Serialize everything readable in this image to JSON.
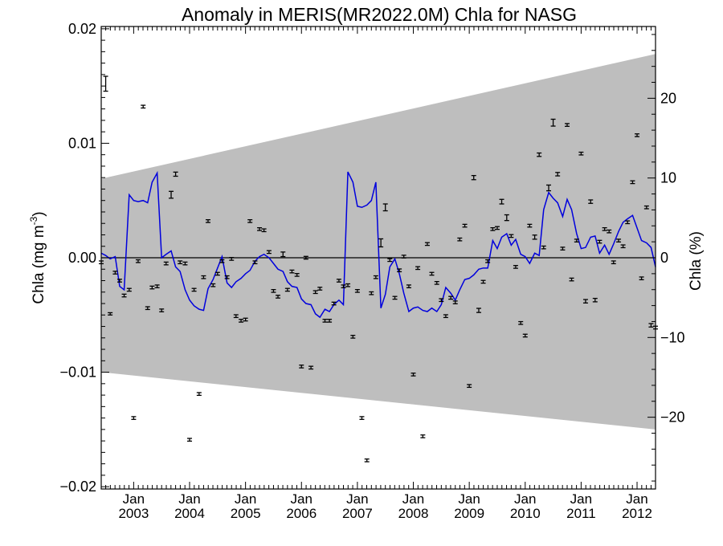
{
  "chart_data": {
    "type": "scatter",
    "title": "Anomaly in MERIS(MR2022.0M) Chla for NASG",
    "ylabel_left": "Chla (mg m",
    "ylabel_left_sup": "-3",
    "ylabel_left_close": ")",
    "ylabel_right": "Chla (%)",
    "x_range": [
      2002.42,
      2012.33
    ],
    "y_range": [
      -0.0202,
      0.0202
    ],
    "y_percent_range": [
      -29.0,
      29.0
    ],
    "x_ticks": [
      {
        "x": 2003.0,
        "month": "Jan",
        "year": "2003"
      },
      {
        "x": 2004.0,
        "month": "Jan",
        "year": "2004"
      },
      {
        "x": 2005.0,
        "month": "Jan",
        "year": "2005"
      },
      {
        "x": 2006.0,
        "month": "Jan",
        "year": "2006"
      },
      {
        "x": 2007.0,
        "month": "Jan",
        "year": "2007"
      },
      {
        "x": 2008.0,
        "month": "Jan",
        "year": "2008"
      },
      {
        "x": 2009.0,
        "month": "Jan",
        "year": "2009"
      },
      {
        "x": 2010.0,
        "month": "Jan",
        "year": "2010"
      },
      {
        "x": 2011.0,
        "month": "Jan",
        "year": "2011"
      },
      {
        "x": 2012.0,
        "month": "Jan",
        "year": "2012"
      }
    ],
    "y_ticks_left": [
      {
        "v": -0.02,
        "label": "−0.02"
      },
      {
        "v": -0.01,
        "label": "−0.01"
      },
      {
        "v": 0.0,
        "label": "0.00"
      },
      {
        "v": 0.01,
        "label": "0.01"
      },
      {
        "v": 0.02,
        "label": "0.02"
      }
    ],
    "y_ticks_right": [
      {
        "v": -20,
        "label": "−20"
      },
      {
        "v": -10,
        "label": "−10"
      },
      {
        "v": 0,
        "label": "0"
      },
      {
        "v": 10,
        "label": "10"
      },
      {
        "v": 20,
        "label": "20"
      }
    ],
    "band": {
      "color": "#bebebe",
      "x": [
        2002.42,
        2012.33
      ],
      "upper": [
        0.0069,
        0.0178
      ],
      "lower": [
        -0.01,
        -0.015
      ]
    },
    "zero_line": 0.0,
    "line_series": {
      "color": "#0000dd",
      "x": [
        2002.42,
        2002.5,
        2002.58,
        2002.67,
        2002.75,
        2002.83,
        2002.92,
        2003.0,
        2003.08,
        2003.17,
        2003.25,
        2003.33,
        2003.42,
        2003.5,
        2003.58,
        2003.67,
        2003.75,
        2003.83,
        2003.92,
        2004.0,
        2004.08,
        2004.17,
        2004.25,
        2004.33,
        2004.42,
        2004.5,
        2004.58,
        2004.67,
        2004.75,
        2004.83,
        2004.92,
        2005.0,
        2005.08,
        2005.17,
        2005.25,
        2005.33,
        2005.42,
        2005.5,
        2005.58,
        2005.67,
        2005.75,
        2005.83,
        2005.92,
        2006.0,
        2006.08,
        2006.17,
        2006.25,
        2006.33,
        2006.42,
        2006.5,
        2006.58,
        2006.67,
        2006.75,
        2006.83,
        2006.92,
        2007.0,
        2007.08,
        2007.17,
        2007.25,
        2007.33,
        2007.42,
        2007.5,
        2007.58,
        2007.67,
        2007.75,
        2007.83,
        2007.92,
        2008.0,
        2008.08,
        2008.17,
        2008.25,
        2008.33,
        2008.42,
        2008.5,
        2008.58,
        2008.67,
        2008.75,
        2008.83,
        2008.92,
        2009.0,
        2009.08,
        2009.17,
        2009.25,
        2009.33,
        2009.42,
        2009.5,
        2009.58,
        2009.67,
        2009.75,
        2009.83,
        2009.92,
        2010.0,
        2010.08,
        2010.17,
        2010.25,
        2010.33,
        2010.42,
        2010.5,
        2010.58,
        2010.67,
        2010.75,
        2010.83,
        2010.92,
        2011.0,
        2011.08,
        2011.17,
        2011.25,
        2011.33,
        2011.42,
        2011.5,
        2011.58,
        2011.67,
        2011.75,
        2011.83,
        2011.92,
        2012.0,
        2012.08,
        2012.17,
        2012.25,
        2012.33
      ],
      "y": [
        0.0004,
        0.0002,
        -0.0001,
        0.0001,
        -0.0025,
        -0.0028,
        0.0055,
        0.005,
        0.0049,
        0.005,
        0.0048,
        0.0066,
        0.0074,
        0.0,
        0.0003,
        0.0006,
        -0.0008,
        -0.0012,
        -0.0028,
        -0.0037,
        -0.0042,
        -0.0045,
        -0.0046,
        -0.0027,
        -0.0019,
        -0.0009,
        0.0001,
        -0.0022,
        -0.0026,
        -0.0021,
        -0.0018,
        -0.0014,
        -0.0011,
        -0.0003,
        0.0001,
        0.0003,
        0.0,
        -0.0005,
        -0.001,
        -0.0012,
        -0.0021,
        -0.0025,
        -0.0026,
        -0.0036,
        -0.004,
        -0.0041,
        -0.0049,
        -0.0052,
        -0.0045,
        -0.0047,
        -0.0041,
        -0.0037,
        -0.0041,
        0.0075,
        0.0066,
        0.0045,
        0.0044,
        0.0046,
        0.005,
        0.0066,
        -0.0044,
        -0.0032,
        -0.0008,
        -0.0001,
        -0.0014,
        -0.0031,
        -0.0047,
        -0.0044,
        -0.0043,
        -0.0046,
        -0.0047,
        -0.0044,
        -0.0047,
        -0.0041,
        -0.0026,
        -0.0031,
        -0.0037,
        -0.0028,
        -0.0019,
        -0.0018,
        -0.0015,
        -0.001,
        -0.0009,
        -0.0009,
        0.0015,
        0.0008,
        0.0018,
        0.0021,
        0.0011,
        0.0016,
        0.0003,
        0.0001,
        -0.0005,
        0.0004,
        0.0002,
        0.0042,
        0.0057,
        0.0052,
        0.0048,
        0.0036,
        0.0051,
        0.0042,
        0.0021,
        0.0008,
        0.0009,
        0.0018,
        0.0019,
        0.0004,
        0.0011,
        0.0003,
        0.0012,
        0.0023,
        0.0031,
        0.0034,
        0.0037,
        0.0026,
        0.0015,
        0.0013,
        0.0009,
        -0.0008
      ]
    },
    "points": {
      "color": "#000000",
      "x": [
        2002.42,
        2002.5,
        2002.58,
        2002.67,
        2002.75,
        2002.83,
        2002.92,
        2003.0,
        2003.08,
        2003.17,
        2003.25,
        2003.33,
        2003.42,
        2003.5,
        2003.58,
        2003.67,
        2003.75,
        2003.83,
        2003.92,
        2004.0,
        2004.08,
        2004.17,
        2004.25,
        2004.33,
        2004.42,
        2004.5,
        2004.58,
        2004.67,
        2004.75,
        2004.83,
        2004.92,
        2005.0,
        2005.08,
        2005.17,
        2005.25,
        2005.33,
        2005.42,
        2005.5,
        2005.58,
        2005.67,
        2005.75,
        2005.83,
        2005.92,
        2006.0,
        2006.08,
        2006.17,
        2006.25,
        2006.33,
        2006.42,
        2006.5,
        2006.58,
        2006.67,
        2006.75,
        2006.83,
        2006.92,
        2007.0,
        2007.08,
        2007.17,
        2007.25,
        2007.33,
        2007.42,
        2007.5,
        2007.58,
        2007.67,
        2007.75,
        2007.83,
        2007.92,
        2008.0,
        2008.08,
        2008.17,
        2008.25,
        2008.33,
        2008.42,
        2008.5,
        2008.58,
        2008.67,
        2008.75,
        2008.83,
        2008.92,
        2009.0,
        2009.08,
        2009.17,
        2009.25,
        2009.33,
        2009.42,
        2009.5,
        2009.58,
        2009.67,
        2009.75,
        2009.83,
        2009.92,
        2010.0,
        2010.08,
        2010.17,
        2010.25,
        2010.33,
        2010.42,
        2010.5,
        2010.58,
        2010.67,
        2010.75,
        2010.83,
        2010.92,
        2011.0,
        2011.08,
        2011.17,
        2011.25,
        2011.33,
        2011.42,
        2011.5,
        2011.58,
        2011.67,
        2011.75,
        2011.83,
        2011.92,
        2012.0,
        2012.08,
        2012.17,
        2012.25,
        2012.33
      ],
      "y": [
        -0.0004,
        0.0152,
        -0.0049,
        -0.0013,
        -0.002,
        -0.0033,
        -0.0028,
        -0.014,
        -0.0003,
        0.0132,
        -0.0044,
        -0.0026,
        -0.0025,
        -0.0046,
        -0.0005,
        0.0055,
        0.0073,
        -0.0004,
        -0.0005,
        -0.0159,
        -0.0028,
        -0.0119,
        -0.0017,
        0.0032,
        -0.0024,
        -0.0014,
        -0.0003,
        -0.0017,
        -0.0001,
        -0.0051,
        -0.0055,
        -0.0054,
        0.0032,
        -0.0004,
        0.0025,
        0.0024,
        0.0005,
        -0.0029,
        -0.0034,
        0.0003,
        -0.0028,
        -0.0012,
        -0.0015,
        -0.0095,
        0.0,
        -0.0096,
        -0.003,
        -0.0027,
        -0.0055,
        -0.0055,
        -0.004,
        -0.002,
        -0.0025,
        -0.0024,
        -0.0069,
        -0.0029,
        -0.014,
        -0.0177,
        -0.0031,
        -0.0017,
        0.0013,
        0.0044,
        -0.0002,
        -0.0035,
        -0.0011,
        0.0001,
        -0.0025,
        -0.0102,
        -0.0009,
        -0.0156,
        0.0012,
        -0.0014,
        -0.0022,
        -0.0037,
        -0.0051,
        -0.0035,
        -0.0039,
        0.0016,
        0.0028,
        -0.0112,
        0.007,
        -0.0046,
        -0.0021,
        -0.0003,
        0.0025,
        0.0026,
        0.0049,
        0.0035,
        0.0019,
        -0.0008,
        -0.0057,
        -0.0068,
        0.0028,
        0.0018,
        0.009,
        0.0009,
        0.0061,
        0.0118,
        0.0073,
        0.0008,
        0.0116,
        -0.0019,
        0.0015,
        0.0091,
        -0.0038,
        0.0049,
        -0.0037,
        0.0014,
        0.0025,
        0.0023,
        -0.0004,
        0.0015,
        0.001,
        0.0031,
        0.0066,
        0.0107,
        -0.0018,
        0.0044,
        -0.0059,
        -0.0061
      ],
      "err": [
        0.00012,
        0.00065,
        0.0001,
        0.00012,
        0.00012,
        0.00012,
        0.00012,
        0.00012,
        0.00012,
        0.00012,
        0.00012,
        0.00012,
        0.00012,
        0.00012,
        0.00012,
        0.0003,
        0.00018,
        0.00012,
        0.00012,
        0.00012,
        0.00012,
        0.00012,
        0.00012,
        0.00012,
        0.00012,
        0.00012,
        0.00012,
        0.00012,
        0.00012,
        0.00012,
        0.00012,
        0.00012,
        0.00012,
        0.00012,
        0.00012,
        0.00012,
        0.00012,
        0.00012,
        0.00012,
        0.0002,
        0.00012,
        0.00012,
        0.00012,
        0.00012,
        0.00012,
        0.00012,
        0.00012,
        0.00012,
        0.00012,
        0.00012,
        0.00012,
        0.00012,
        0.00012,
        0.00012,
        0.00012,
        0.00012,
        0.00012,
        0.00012,
        0.00012,
        0.00012,
        0.00035,
        0.0003,
        0.00012,
        0.00012,
        0.00012,
        0.00012,
        0.00012,
        0.00012,
        0.00012,
        0.00012,
        0.00012,
        0.00012,
        0.00012,
        0.00012,
        0.00012,
        0.00012,
        0.00012,
        0.00012,
        0.00012,
        0.00012,
        0.00018,
        0.00018,
        0.00012,
        0.00012,
        0.00012,
        0.00012,
        0.0002,
        0.00025,
        0.00012,
        0.00012,
        0.00012,
        0.00012,
        0.00012,
        0.00018,
        0.00015,
        0.00012,
        0.00025,
        0.0003,
        0.00015,
        0.00012,
        0.00012,
        0.00012,
        0.00012,
        0.00012,
        0.00015,
        0.00015,
        0.00015,
        0.00012,
        0.00012,
        0.00012,
        0.00012,
        0.00012,
        0.00012,
        0.00012,
        0.00012,
        0.00012,
        0.00012,
        0.00012,
        0.00015,
        0.00012
      ]
    }
  }
}
